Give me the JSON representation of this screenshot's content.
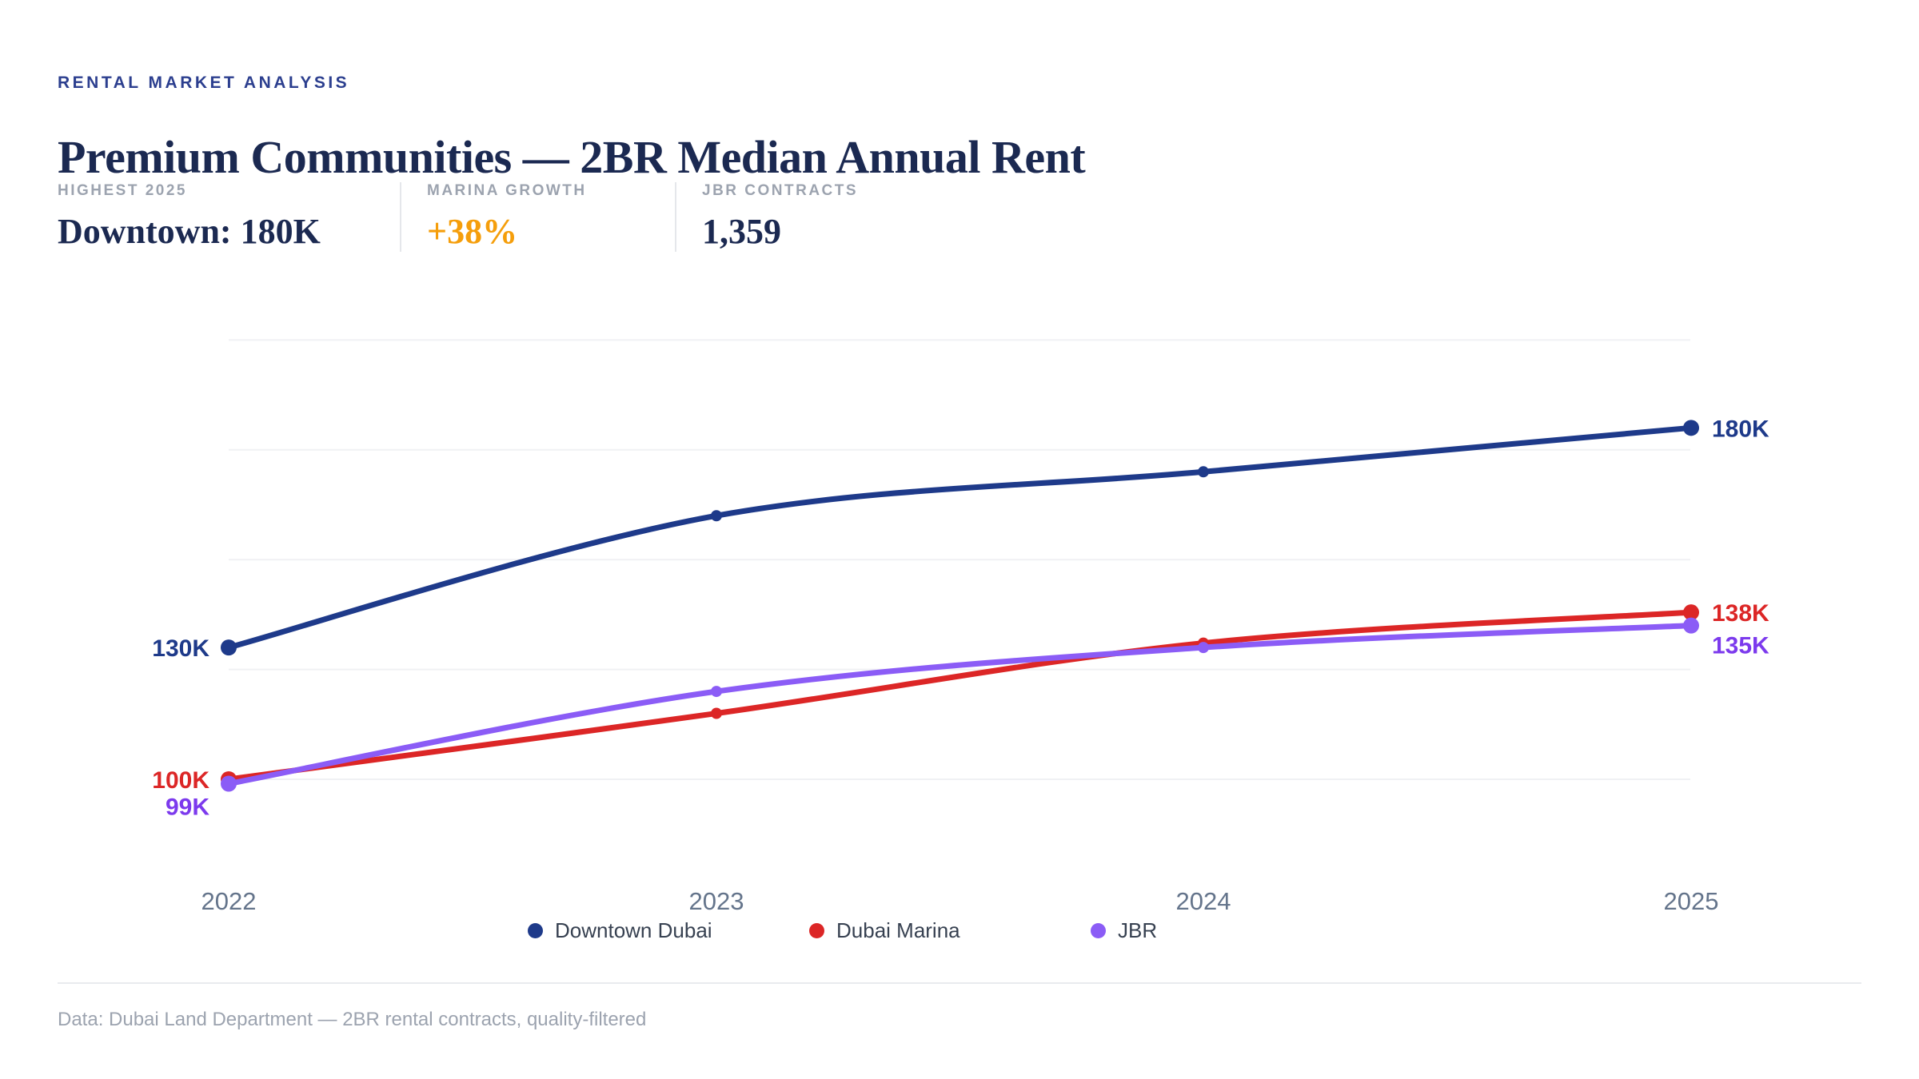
{
  "header": {
    "eyebrow": "RENTAL MARKET ANALYSIS",
    "title": "Premium Communities — 2BR Median Annual Rent"
  },
  "stats": {
    "items": [
      {
        "label": "HIGHEST 2025",
        "value": "Downtown: 180K"
      },
      {
        "label": "MARINA GROWTH",
        "value": "+38%",
        "accent_color": "#f59e0b"
      },
      {
        "label": "JBR CONTRACTS",
        "value": "1,359"
      }
    ]
  },
  "colors": {
    "eyebrow_navy": "#2c3f8f",
    "title_navy": "#1b2951",
    "downtown_navy": "#1e3a8a",
    "marina_red": "#dc2626",
    "jbr_purple": "#8b5cf6",
    "jbr_label_purple": "#7c3aed",
    "accent_orange": "#f59e0b",
    "gridline": "#f0f1f4",
    "tick_gray": "#64748b",
    "legend_text": "#374151",
    "muted_gray": "#9ca3af",
    "divider": "#e5e7eb"
  },
  "chart_data": {
    "type": "line",
    "title": "",
    "xlabel": "",
    "ylabel": "",
    "x": [
      "2022",
      "2023",
      "2024",
      "2025"
    ],
    "series": [
      {
        "name": "Downtown Dubai",
        "color": "#1e3a8a",
        "values": [
          130,
          160,
          170,
          180
        ],
        "start_label": "130K",
        "end_label": "180K"
      },
      {
        "name": "Dubai Marina",
        "color": "#dc2626",
        "values": [
          100,
          115,
          131,
          138
        ],
        "start_label": "100K",
        "end_label": "138K"
      },
      {
        "name": "JBR",
        "color": "#8b5cf6",
        "label_color": "#7c3aed",
        "values": [
          99,
          120,
          130,
          135
        ],
        "start_label": "99K",
        "end_label": "135K"
      }
    ],
    "unit": "K",
    "gridlines": [
      100,
      125,
      150,
      175,
      200
    ],
    "ylim": [
      90,
      210
    ],
    "grid": true,
    "legend_position": "bottom",
    "label_offsets": {
      "JBR": {
        "start_dy": 28,
        "end_dy": 24
      }
    }
  },
  "legend": {
    "items": [
      {
        "label": "Downtown Dubai",
        "color": "#1e3a8a"
      },
      {
        "label": "Dubai Marina",
        "color": "#dc2626"
      },
      {
        "label": "JBR",
        "color": "#8b5cf6"
      }
    ]
  },
  "footer": {
    "source": "Data: Dubai Land Department — 2BR rental contracts, quality-filtered"
  }
}
